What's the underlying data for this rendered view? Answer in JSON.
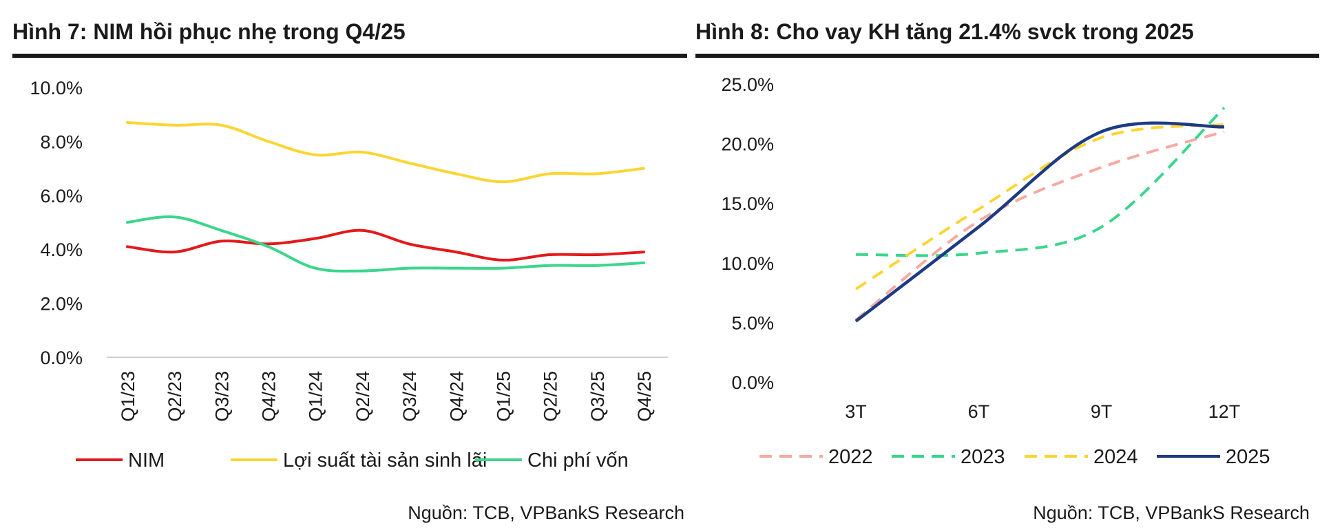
{
  "chart_data": [
    {
      "type": "line",
      "title": "Hình 7: NIM hồi phục nhẹ trong Q4/25",
      "categories": [
        "Q1/23",
        "Q2/23",
        "Q3/23",
        "Q4/23",
        "Q1/24",
        "Q2/24",
        "Q3/24",
        "Q4/24",
        "Q1/25",
        "Q2/25",
        "Q3/25",
        "Q4/25"
      ],
      "yticks": [
        "0.0%",
        "2.0%",
        "4.0%",
        "6.0%",
        "8.0%",
        "10.0%"
      ],
      "ylim": [
        0,
        10
      ],
      "grid": false,
      "legend_position": "bottom",
      "series": [
        {
          "name": "NIM",
          "color": "#e3191b",
          "dashed": false,
          "values": [
            4.1,
            3.9,
            4.3,
            4.2,
            4.4,
            4.7,
            4.2,
            3.9,
            3.6,
            3.8,
            3.8,
            3.9
          ]
        },
        {
          "name": "Lợi suất tài sản sinh lãi",
          "color": "#fcd534",
          "dashed": false,
          "values": [
            8.7,
            8.6,
            8.6,
            8.0,
            7.5,
            7.6,
            7.2,
            6.8,
            6.5,
            6.8,
            6.8,
            7.0
          ]
        },
        {
          "name": "Chi phí vốn",
          "color": "#3bd68c",
          "dashed": false,
          "values": [
            5.0,
            5.2,
            4.7,
            4.1,
            3.3,
            3.2,
            3.3,
            3.3,
            3.3,
            3.4,
            3.4,
            3.5
          ]
        }
      ],
      "source": "Nguồn: TCB, VPBankS Research"
    },
    {
      "type": "line",
      "title": "Hình 8: Cho vay KH tăng 21.4% svck trong 2025",
      "categories": [
        "3T",
        "6T",
        "9T",
        "12T"
      ],
      "yticks": [
        "0.0%",
        "5.0%",
        "10.0%",
        "15.0%",
        "20.0%",
        "25.0%"
      ],
      "ylim": [
        0,
        25
      ],
      "grid": false,
      "legend_position": "bottom",
      "series": [
        {
          "name": "2022",
          "color": "#f6aaa0",
          "dashed": true,
          "values": [
            5.2,
            13.5,
            18.0,
            21.0
          ]
        },
        {
          "name": "2023",
          "color": "#3bd68c",
          "dashed": true,
          "values": [
            10.7,
            10.8,
            13.0,
            23.0
          ]
        },
        {
          "name": "2024",
          "color": "#fcd534",
          "dashed": true,
          "values": [
            7.8,
            14.5,
            20.5,
            21.6
          ]
        },
        {
          "name": "2025",
          "color": "#1d3a84",
          "dashed": false,
          "values": [
            5.1,
            13.0,
            21.0,
            21.4
          ]
        }
      ],
      "source": "Nguồn: TCB, VPBankS Research"
    }
  ]
}
